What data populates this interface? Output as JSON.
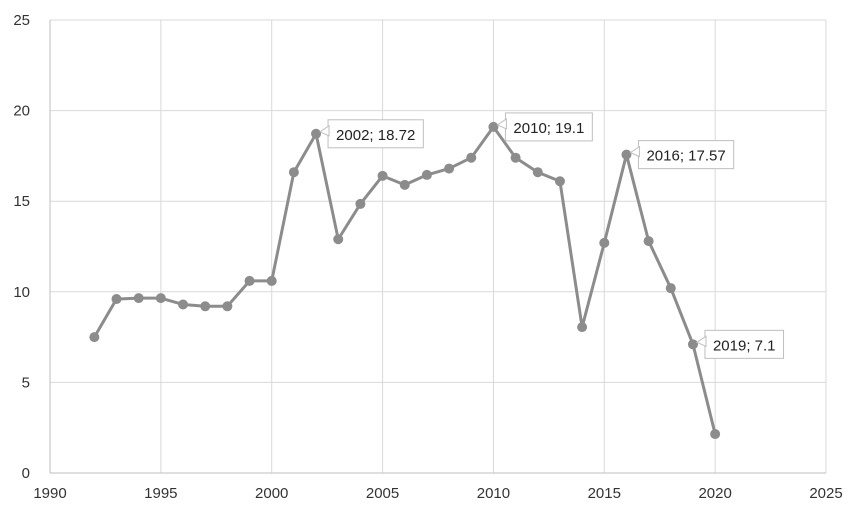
{
  "chart_data": {
    "type": "scatter",
    "title": "",
    "xlabel": "",
    "ylabel": "",
    "xlim": [
      1990,
      2025
    ],
    "ylim": [
      0,
      25
    ],
    "xticks": [
      1990,
      1995,
      2000,
      2005,
      2010,
      2015,
      2020,
      2025
    ],
    "yticks": [
      0,
      5,
      10,
      15,
      20,
      25
    ],
    "grid": true,
    "series": [
      {
        "color": "#8c8c8c",
        "points": [
          [
            1992,
            7.5
          ],
          [
            1993,
            9.6
          ],
          [
            1994,
            9.65
          ],
          [
            1995,
            9.65
          ],
          [
            1996,
            9.3
          ],
          [
            1997,
            9.2
          ],
          [
            1998,
            9.2
          ],
          [
            1999,
            10.6
          ],
          [
            2000,
            10.6
          ],
          [
            2001,
            16.6
          ],
          [
            2002,
            18.72
          ],
          [
            2003,
            12.9
          ],
          [
            2004,
            14.85
          ],
          [
            2005,
            16.4
          ],
          [
            2006,
            15.9
          ],
          [
            2007,
            16.45
          ],
          [
            2008,
            16.8
          ],
          [
            2009,
            17.4
          ],
          [
            2010,
            19.1
          ],
          [
            2011,
            17.4
          ],
          [
            2012,
            16.6
          ],
          [
            2013,
            16.1
          ],
          [
            2014,
            8.05
          ],
          [
            2015,
            12.7
          ],
          [
            2016,
            17.57
          ],
          [
            2017,
            12.8
          ],
          [
            2018,
            10.2
          ],
          [
            2019,
            7.1
          ],
          [
            2020,
            2.15
          ]
        ]
      }
    ],
    "annotations": [
      {
        "x": 2002,
        "y": 18.72,
        "text": "2002; 18.72"
      },
      {
        "x": 2010,
        "y": 19.1,
        "text": "2010; 19.1"
      },
      {
        "x": 2016,
        "y": 17.57,
        "text": "2016; 17.57"
      },
      {
        "x": 2019,
        "y": 7.1,
        "text": "2019; 7.1"
      }
    ]
  }
}
